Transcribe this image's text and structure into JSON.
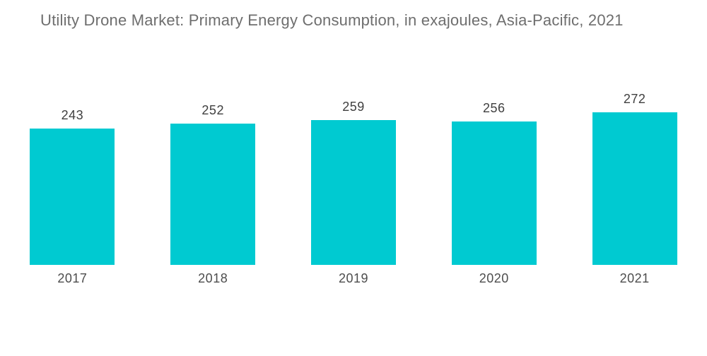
{
  "title": "Utility Drone Market: Primary Energy Consumption, in exajoules, Asia-Pacific, 2021",
  "colors": {
    "bar": "#00CAD1",
    "title_text": "#6e6e6e",
    "value_text": "#3f3f3f",
    "axis_text": "#4d4d4d",
    "background": "#ffffff"
  },
  "chart_data": {
    "type": "bar",
    "title": "Utility Drone Market: Primary Energy Consumption, in exajoules, Asia-Pacific, 2021",
    "categories": [
      "2017",
      "2018",
      "2019",
      "2020",
      "2021"
    ],
    "values": [
      243,
      252,
      259,
      256,
      272
    ],
    "xlabel": "",
    "ylabel": "",
    "ylim": [
      0,
      300
    ],
    "grid": false,
    "legend": false,
    "axes_visible": false,
    "value_labels": "above bars"
  }
}
